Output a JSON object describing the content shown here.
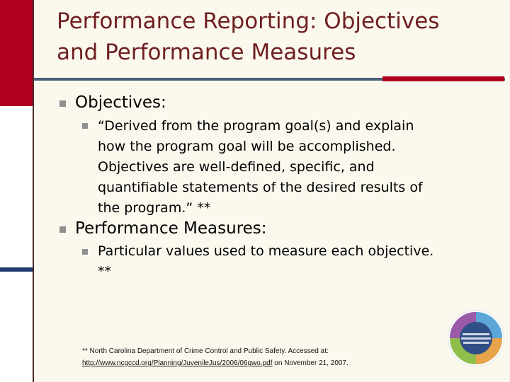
{
  "slide": {
    "title_line1": "Performance Reporting: Objectives",
    "title_line2": "and Performance Measures",
    "sections": [
      {
        "heading_bold": "Objectives",
        "heading_colon": ":",
        "sub_lines": [
          "“Derived from the program goal(s) and explain",
          "how the program goal will be accomplished.",
          "Objectives are well-defined, specific, and",
          "quantifiable statements of the desired results of",
          "the program.” **"
        ]
      },
      {
        "heading_bold": "Performance Measures",
        "heading_colon": ":",
        "sub_lines": [
          "Particular values used to measure each objective.",
          "**"
        ]
      }
    ],
    "footnote": {
      "line1": "** North Carolina Department of Crime Control and Public Safety.  Accessed at:",
      "link": "http://www.ncgccd.org/Planning/JuvenileJus/2006/06gwo.pdf",
      "line2_tail": " on November 21, 2007."
    },
    "logo_icon": "circular-quadrant-logo-icon"
  },
  "colors": {
    "title": "#6f2020",
    "accent_red": "#b0001e",
    "rule_blue": "#4b5f7f",
    "background": "#fbf8ee"
  }
}
